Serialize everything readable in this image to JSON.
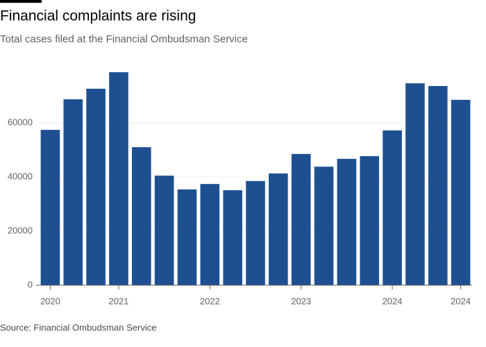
{
  "chart_data": {
    "type": "bar",
    "title": "Financial complaints are rising",
    "subtitle": "Total cases filed at the Financial Ombudsman Service",
    "source": "Source: Financial Ombudsman Service",
    "categories": [
      "2020",
      null,
      null,
      "2021",
      null,
      null,
      null,
      "2022",
      null,
      null,
      null,
      "2023",
      null,
      null,
      null,
      "2024",
      null,
      null,
      "2024"
    ],
    "values": [
      57400,
      68700,
      72600,
      78700,
      51000,
      40500,
      35400,
      37400,
      35100,
      38500,
      41300,
      48500,
      43800,
      46700,
      47700,
      57200,
      74600,
      73600,
      68500
    ],
    "color": "#1e5091",
    "ylim": [
      0,
      80000
    ],
    "yticks": [
      0,
      20000,
      40000,
      60000
    ],
    "grid": true
  }
}
